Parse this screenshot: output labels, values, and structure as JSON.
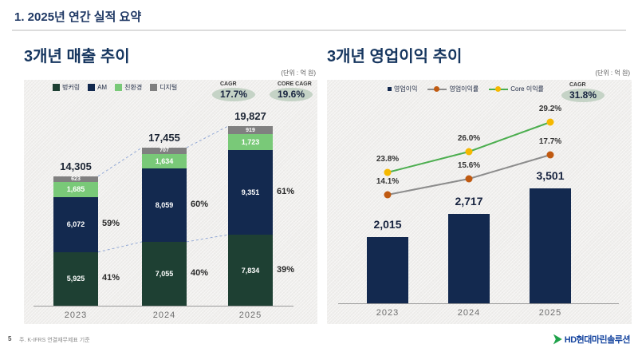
{
  "page": {
    "title": "1. 2025년 연간 실적 요약",
    "page_number": "5",
    "footnote": "주. K-IFRS 연결재무제표 기준",
    "logo_text": "HD현대마린솔루션"
  },
  "chart_data": [
    {
      "type": "bar",
      "stacked": true,
      "title": "3개년 매출 추이",
      "unit": "(단위 : 억 원)",
      "categories": [
        "2023",
        "2024",
        "2025"
      ],
      "series": [
        {
          "name": "벙커링",
          "color": "#1e4033",
          "values": [
            5925,
            7055,
            7834
          ]
        },
        {
          "name": "AM",
          "color": "#13294f",
          "values": [
            6072,
            8059,
            9351
          ]
        },
        {
          "name": "친환경",
          "color": "#79c978",
          "values": [
            1685,
            1634,
            1723
          ]
        },
        {
          "name": "디지털",
          "color": "#808080",
          "values": [
            623,
            707,
            919
          ]
        }
      ],
      "totals": [
        14305,
        17455,
        19827
      ],
      "share_labels": {
        "bunkering": [
          "41%",
          "40%",
          "39%"
        ],
        "rest": [
          "59%",
          "60%",
          "61%"
        ]
      },
      "badges": [
        {
          "label": "CAGR",
          "value": "17.7%"
        },
        {
          "label": "CORE CAGR",
          "value": "19.6%"
        }
      ],
      "connector_color": "#93a9d6",
      "legend_position": "top"
    },
    {
      "type": "bar+line",
      "title": "3개년 영업이익 추이",
      "unit": "(단위 : 억 원)",
      "categories": [
        "2023",
        "2024",
        "2025"
      ],
      "bar_series": {
        "name": "영업이익",
        "color": "#13294f",
        "values": [
          2015,
          2717,
          3501
        ]
      },
      "line_series": [
        {
          "name": "영업이익률",
          "line_color": "#8c8c8c",
          "marker_color": "#c05a11",
          "values": [
            14.1,
            15.6,
            17.7
          ]
        },
        {
          "name": "Core 이익률",
          "line_color": "#4cae4f",
          "marker_color": "#f5b800",
          "values": [
            23.8,
            26.0,
            29.2
          ]
        }
      ],
      "badges": [
        {
          "label": "CAGR",
          "value": "31.8%"
        }
      ],
      "legend_position": "top"
    }
  ]
}
